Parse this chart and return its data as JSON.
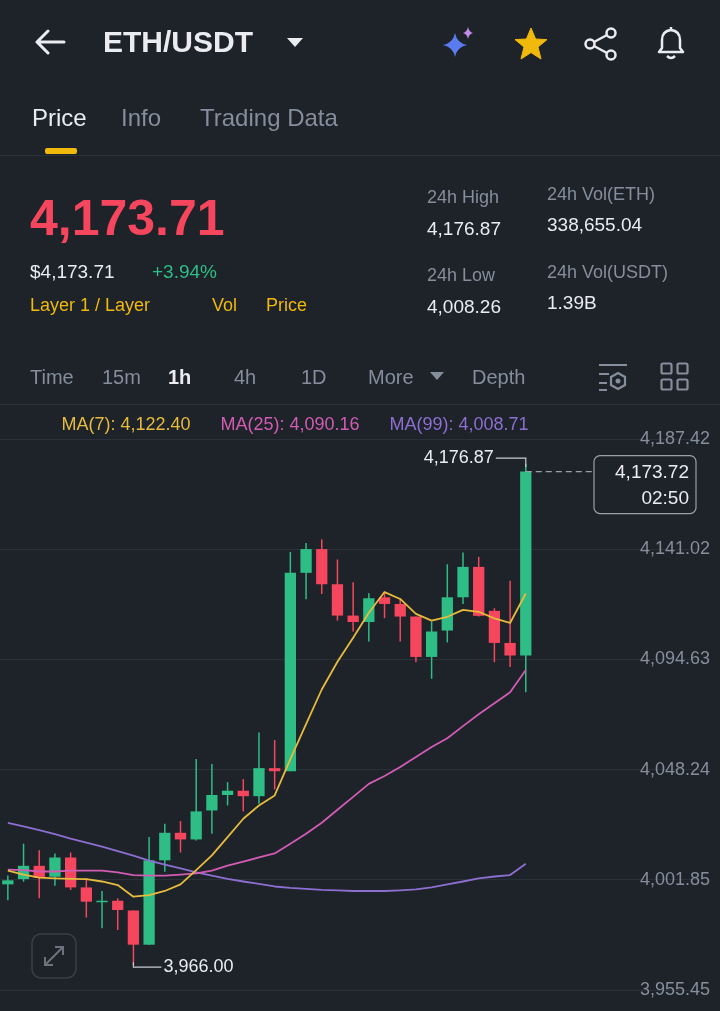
{
  "chart_data": {
    "type": "candlestick",
    "title": "ETH/USDT",
    "categories": [
      null,
      null,
      null,
      null,
      null,
      null,
      null,
      null,
      null,
      null,
      null,
      null,
      null,
      null,
      null,
      null,
      null,
      null,
      null,
      null,
      null,
      null,
      null,
      null,
      null,
      null,
      null,
      null,
      null,
      null,
      null,
      null,
      null,
      null
    ],
    "ohlc": [
      [
        4000.0,
        4003.7,
        3993.3,
        4001.7
      ],
      [
        4002.2,
        4017.1,
        4001.1,
        4007.8
      ],
      [
        4007.8,
        4014.3,
        3994.1,
        4002.8
      ],
      [
        4003.2,
        4013.0,
        3999.4,
        4011.3
      ],
      [
        4011.3,
        4013.4,
        3997.6,
        3998.7
      ],
      [
        3998.7,
        4002.5,
        3986.0,
        3992.7
      ],
      [
        3992.7,
        3997.2,
        3981.5,
        3993.1
      ],
      [
        3993.1,
        3994.1,
        3980.8,
        3989.2
      ],
      [
        3989.0,
        3989.0,
        3966.0,
        3974.6
      ],
      [
        3974.6,
        4019.9,
        3974.6,
        4010.1
      ],
      [
        4010.1,
        4025.5,
        4005.3,
        4021.7
      ],
      [
        4021.7,
        4026.6,
        4013.4,
        4018.9
      ],
      [
        4018.9,
        4052.7,
        4018.5,
        4030.7
      ],
      [
        4031.1,
        4050.6,
        4021.3,
        4037.6
      ],
      [
        4037.6,
        4043.0,
        4033.2,
        4039.4
      ],
      [
        4039.4,
        4044.3,
        4030.7,
        4037.1
      ],
      [
        4037.1,
        4063.9,
        4033.9,
        4048.9
      ],
      [
        4048.9,
        4060.7,
        4039.9,
        4047.6
      ],
      [
        4047.6,
        4139.9,
        4047.6,
        4131.1
      ],
      [
        4131.1,
        4143.7,
        4120.0,
        4141.1
      ],
      [
        4141.1,
        4145.2,
        4122.2,
        4126.3
      ],
      [
        4126.3,
        4136.7,
        4111.0,
        4113.1
      ],
      [
        4113.1,
        4127.1,
        4106.4,
        4110.4
      ],
      [
        4110.4,
        4122.5,
        4102.2,
        4120.4
      ],
      [
        4120.8,
        4123.2,
        4112.0,
        4118.0
      ],
      [
        4118.0,
        4120.4,
        4102.2,
        4112.7
      ],
      [
        4112.7,
        4112.7,
        4093.5,
        4095.7
      ],
      [
        4095.7,
        4110.6,
        4086.5,
        4106.4
      ],
      [
        4106.8,
        4134.7,
        4101.8,
        4120.8
      ],
      [
        4120.8,
        4139.7,
        4118.0,
        4133.6
      ],
      [
        4133.6,
        4137.8,
        4112.7,
        4113.0
      ],
      [
        4115.1,
        4116.2,
        4093.5,
        4101.6
      ],
      [
        4101.6,
        4127.8,
        4091.5,
        4096.3
      ],
      [
        4096.3,
        4176.87,
        4080.8,
        4173.72
      ]
    ],
    "colors": [
      "#2ebd85",
      "#2ebd85",
      "#f6465d",
      "#2ebd85",
      "#f6465d",
      "#f6465d",
      "#2ebd85",
      "#f6465d",
      "#f6465d",
      "#2ebd85",
      "#2ebd85",
      "#f6465d",
      "#2ebd85",
      "#2ebd85",
      "#2ebd85",
      "#f6465d",
      "#2ebd85",
      "#f6465d",
      "#2ebd85",
      "#2ebd85",
      "#f6465d",
      "#f6465d",
      "#f6465d",
      "#2ebd85",
      "#f6465d",
      "#f6465d",
      "#f6465d",
      "#2ebd85",
      "#2ebd85",
      "#2ebd85",
      "#f6465d",
      "#f6465d",
      "#f6465d",
      "#2ebd85"
    ],
    "series": [
      {
        "name": "MA(7): 4,122.40",
        "type": "line",
        "color": "#e6bb3e",
        "values": [
          4005.8,
          4004.1,
          4002.8,
          4002.5,
          4002.3,
          4002.2,
          4001.2,
          3999.7,
          3994.8,
          3995.5,
          3997.2,
          4000.0,
          4006.0,
          4012.2,
          4019.9,
          4027.6,
          4033.2,
          4037.4,
          4052.7,
          4067.4,
          4082.0,
          4093.7,
          4103.8,
          4114.3,
          4123.0,
          4120.1,
          4113.8,
          4111.0,
          4112.6,
          4115.5,
          4114.7,
          4111.9,
          4110.0,
          4122.4
        ]
      },
      {
        "name": "MA(25): 4,090.16",
        "type": "line",
        "color": "#d25cb4",
        "values": [
          4006.2,
          4006.0,
          4005.4,
          4005.4,
          4005.8,
          4005.8,
          4005.8,
          4005.0,
          4003.9,
          4003.7,
          4003.7,
          4004.1,
          4004.6,
          4005.8,
          4007.9,
          4009.6,
          4011.3,
          4013.0,
          4017.1,
          4021.3,
          4025.9,
          4031.4,
          4036.8,
          4042.3,
          4045.6,
          4049.4,
          4053.6,
          4057.8,
          4061.5,
          4066.6,
          4071.6,
          4076.2,
          4080.8,
          4090.2
        ]
      },
      {
        "name": "MA(99): 4,008.71",
        "type": "line",
        "color": "#8c6fd0",
        "values": [
          4025.9,
          4024.4,
          4022.8,
          4021.1,
          4019.2,
          4017.6,
          4015.9,
          4014.0,
          4012.1,
          4010.0,
          4008.3,
          4006.7,
          4005.0,
          4003.7,
          4002.3,
          4001.2,
          4000.2,
          3999.1,
          3998.5,
          3998.1,
          3997.7,
          3997.5,
          3997.2,
          3997.2,
          3997.2,
          3997.5,
          3997.9,
          3998.7,
          4000.0,
          4001.2,
          4002.5,
          4003.3,
          4003.9,
          4008.7
        ]
      }
    ],
    "ylim": [
      3955.45,
      4187.42
    ],
    "yticks": [
      {
        "value": 3955.45,
        "label": "3,955.45"
      },
      {
        "value": 4001.85,
        "label": "4,001.85"
      },
      {
        "value": 4048.24,
        "label": "4,048.24"
      },
      {
        "value": 4094.63,
        "label": "4,094.63"
      },
      {
        "value": 4141.02,
        "label": "4,141.02"
      },
      {
        "value": 4187.42,
        "label": "4,187.42"
      }
    ],
    "grid": "y",
    "tick_labels": "y",
    "legend": "top",
    "marker": "none",
    "line_style": "solid",
    "ref_lines": [
      {
        "axis": "y",
        "value": 4173.72,
        "label": "4,173.72\n02:50",
        "line_style": "dashed",
        "color": "#9aa0a8"
      }
    ],
    "annotations": [
      "Price",
      "Info",
      "Trading Data",
      "4,173.71",
      "$4,173.71",
      "+3.94%",
      "Layer 1 / Layer",
      "Vol",
      "Price",
      "24h High",
      "4,176.87",
      "24h Low",
      "4,008.26",
      "24h Vol(ETH)",
      "338,655.04",
      "24h Vol(USDT)",
      "1.39B",
      "Time",
      "15m",
      "1h",
      "4h",
      "1D",
      "More",
      "Depth",
      "4,176.87",
      "3,966.00"
    ]
  }
}
